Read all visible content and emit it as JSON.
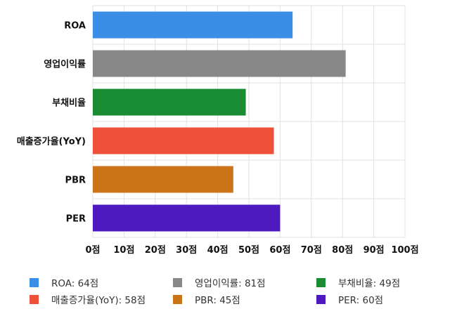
{
  "chart_data": {
    "type": "bar",
    "orientation": "horizontal",
    "categories": [
      "ROA",
      "영업이익률",
      "부채비율",
      "매출증가율(YoY)",
      "PBR",
      "PER"
    ],
    "values": [
      64,
      81,
      49,
      58,
      45,
      60
    ],
    "colors": [
      "#3a8ee6",
      "#888888",
      "#1a8c34",
      "#ef5039",
      "#cc7518",
      "#4e1abf"
    ],
    "xlim": [
      0,
      100
    ],
    "xticks": [
      "0점",
      "10점",
      "20점",
      "30점",
      "40점",
      "50점",
      "60점",
      "70점",
      "80점",
      "90점",
      "100점"
    ],
    "grid": true,
    "legend_placement": "bottom",
    "legend": [
      "ROA: 64점",
      "영업이익률: 81점",
      "부채비율: 49점",
      "매출증가율(YoY): 58점",
      "PBR: 45점",
      "PER: 60점"
    ]
  }
}
